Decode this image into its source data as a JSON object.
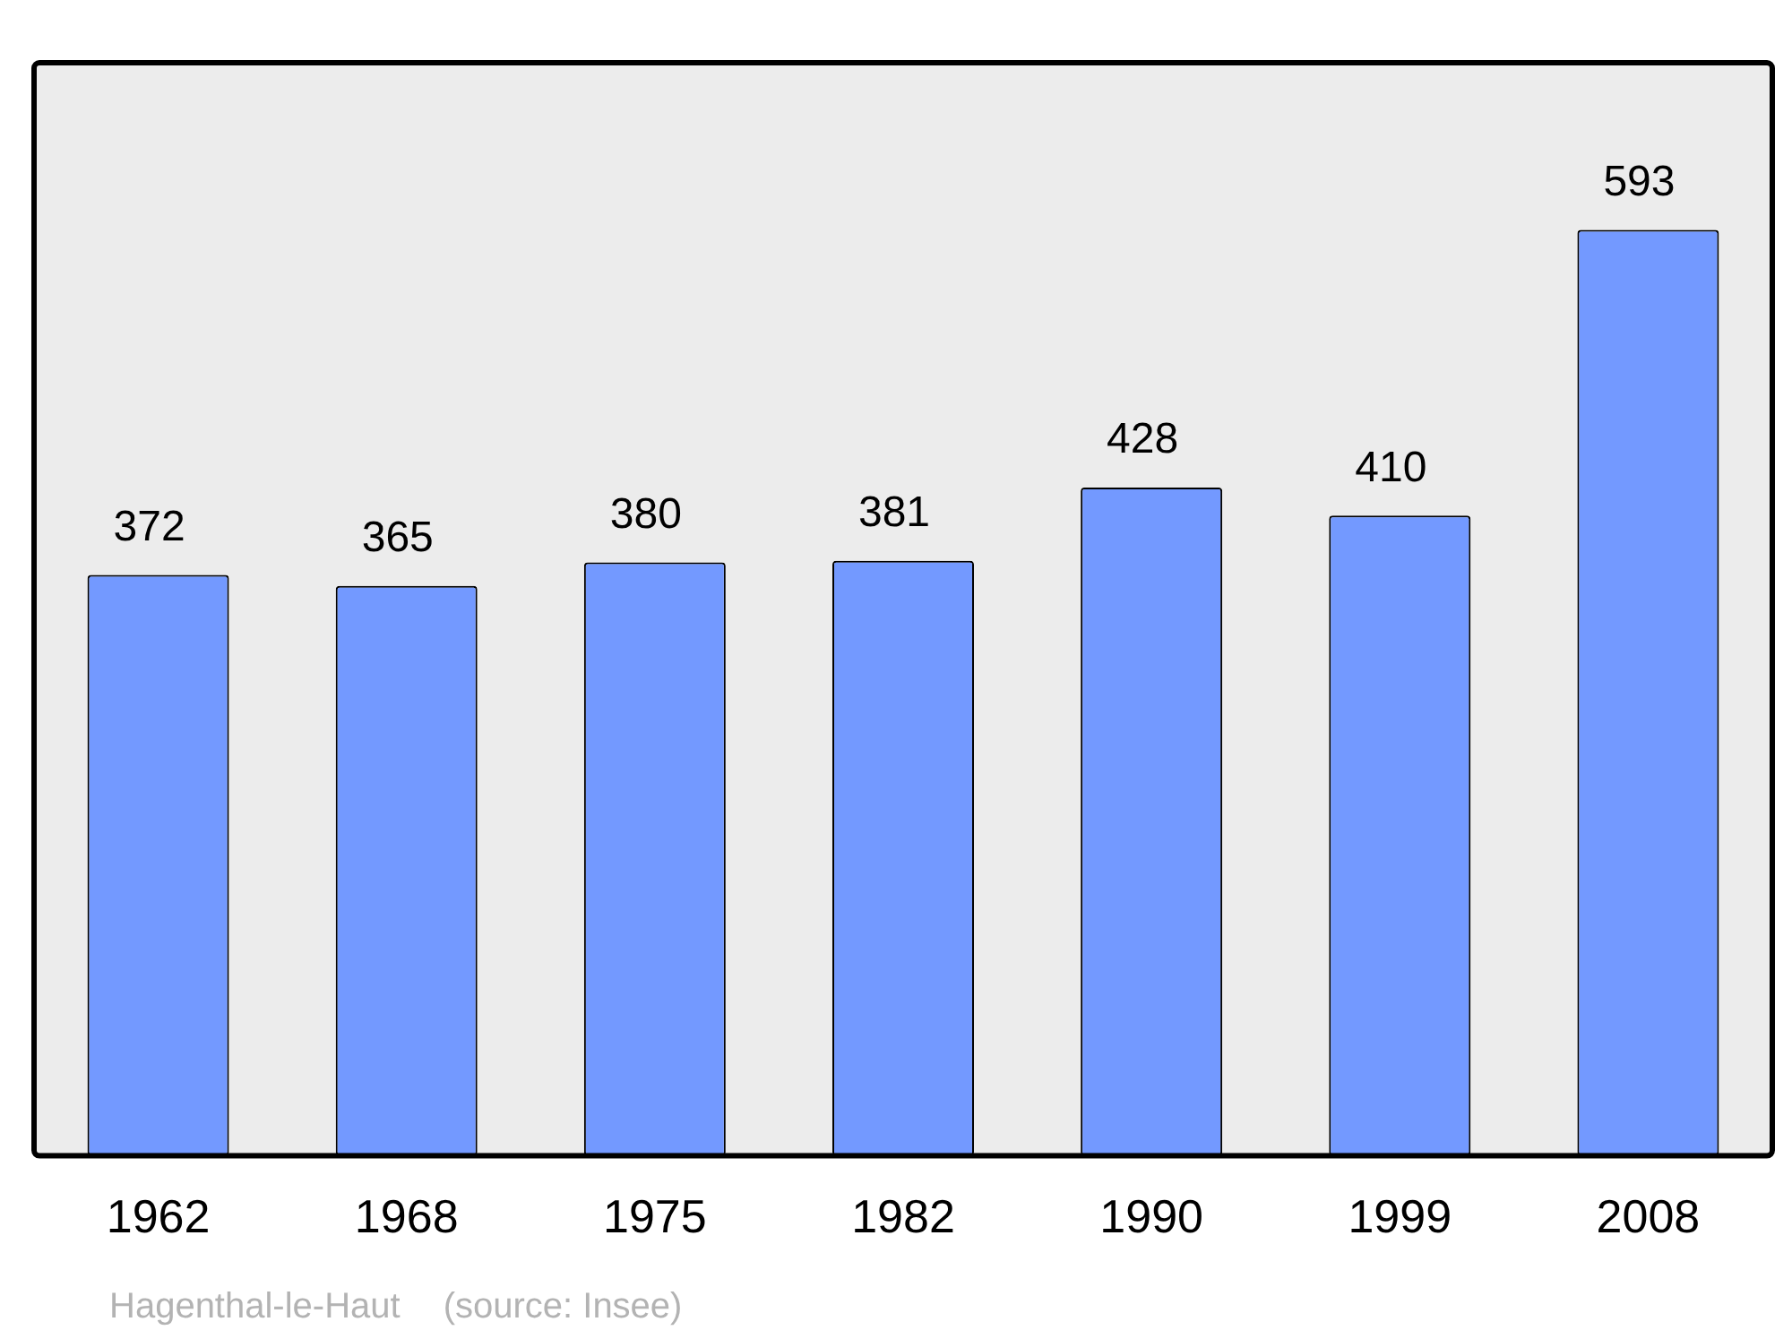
{
  "chart_data": {
    "type": "bar",
    "categories": [
      "1962",
      "1968",
      "1975",
      "1982",
      "1990",
      "1999",
      "2008"
    ],
    "values": [
      372,
      365,
      380,
      381,
      428,
      410,
      593
    ],
    "color": "#7399ff",
    "relative": false,
    "data_labels": true,
    "grid": false,
    "legend": false,
    "annotations": [
      "Hagenthal-le-Haut",
      "(source: Insee)"
    ]
  }
}
